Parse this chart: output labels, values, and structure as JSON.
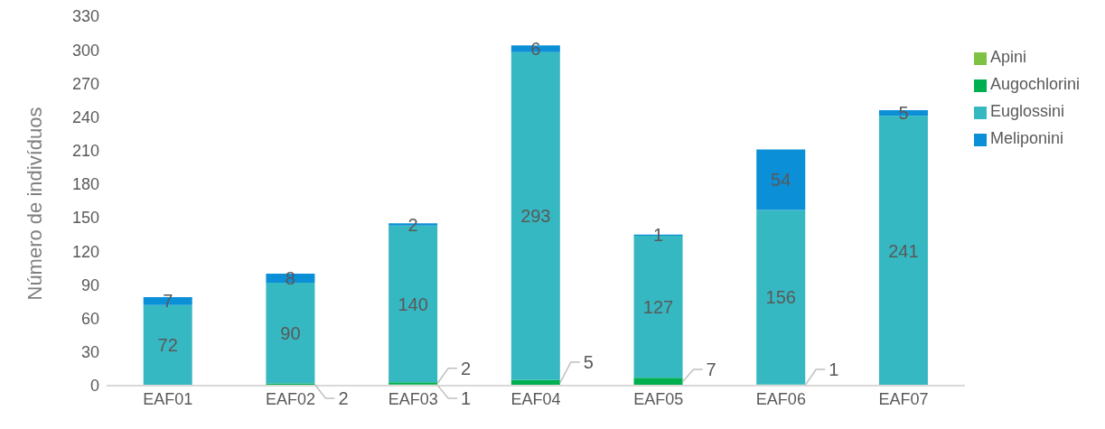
{
  "chart_data": {
    "type": "bar",
    "stacked": true,
    "ylabel": "Número de indivíduos",
    "categories": [
      "EAF01",
      "EAF02",
      "EAF03",
      "EAF04",
      "EAF05",
      "EAF06",
      "EAF07"
    ],
    "series": [
      {
        "name": "Apini",
        "color": "#7dc242",
        "values": [
          null,
          null,
          1,
          null,
          null,
          1,
          null
        ]
      },
      {
        "name": "Augochlorini",
        "color": "#00b050",
        "values": [
          null,
          2,
          2,
          5,
          7,
          null,
          null
        ]
      },
      {
        "name": "Euglossini",
        "color": "#36b8c2",
        "values": [
          72,
          90,
          140,
          293,
          127,
          156,
          241
        ]
      },
      {
        "name": "Meliponini",
        "color": "#0b8fd6",
        "values": [
          7,
          8,
          2,
          6,
          1,
          54,
          5
        ]
      }
    ],
    "ylim": [
      0,
      330
    ],
    "yticks": [
      0,
      30,
      60,
      90,
      120,
      150,
      180,
      210,
      240,
      270,
      300,
      330
    ],
    "grid": false,
    "legend": "right",
    "data_labels": true
  }
}
